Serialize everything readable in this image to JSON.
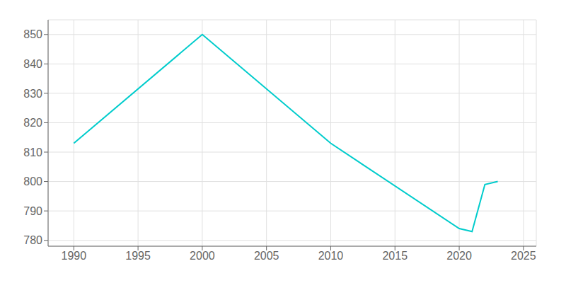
{
  "chart_data": {
    "type": "line",
    "x": [
      1990,
      2000,
      2010,
      2020,
      2021,
      2022,
      2023
    ],
    "values": [
      813,
      850,
      813,
      784,
      783,
      799,
      800
    ],
    "color": "#00CCCC",
    "xlim": [
      1988,
      2026
    ],
    "ylim": [
      778,
      855
    ],
    "xticks": [
      1990,
      1995,
      2000,
      2005,
      2010,
      2015,
      2020,
      2025
    ],
    "yticks": [
      780,
      790,
      800,
      810,
      820,
      830,
      840,
      850
    ],
    "grid": true
  }
}
